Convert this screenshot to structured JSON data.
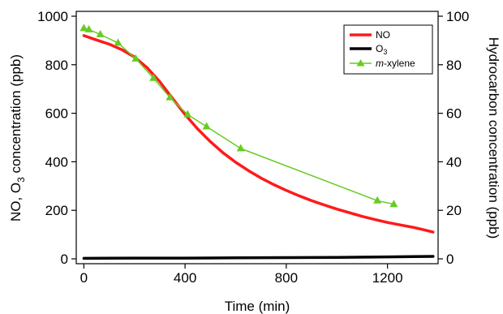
{
  "chart_data": {
    "type": "line",
    "x_range": [
      -30,
      1400
    ],
    "y_left_range": [
      -20,
      1020
    ],
    "y_right_range": [
      -2,
      102
    ],
    "x_ticks": [
      0,
      400,
      800,
      1200
    ],
    "y_left_ticks": [
      0,
      200,
      400,
      600,
      800,
      1000
    ],
    "y_right_ticks": [
      0,
      20,
      40,
      60,
      80,
      100
    ],
    "xlabel": "Time (min)",
    "ylabel_left_parts": {
      "a": "NO, O",
      "sub": "3",
      "b": " concentration  (ppb)"
    },
    "ylabel_right": "Hydrocarbon  concentration (ppb)",
    "legend_position": "top-right",
    "series": [
      {
        "name": "NO",
        "axis": "left",
        "color": "#ff1a1a",
        "marker": "none",
        "x": [
          0,
          50,
          100,
          150,
          200,
          250,
          300,
          350,
          400,
          450,
          500,
          550,
          600,
          650,
          700,
          750,
          800,
          850,
          900,
          950,
          1000,
          1050,
          1100,
          1150,
          1200,
          1250,
          1300,
          1350,
          1380
        ],
        "y": [
          920,
          902,
          885,
          862,
          832,
          788,
          730,
          662,
          595,
          535,
          483,
          437,
          398,
          364,
          333,
          306,
          282,
          260,
          240,
          222,
          205,
          190,
          175,
          162,
          150,
          140,
          130,
          118,
          110
        ]
      },
      {
        "name_parts": {
          "a": "O",
          "sub": "3"
        },
        "axis": "left",
        "color": "#000000",
        "marker": "none",
        "x": [
          0,
          200,
          400,
          600,
          800,
          1000,
          1200,
          1380
        ],
        "y": [
          2,
          3,
          3,
          4,
          5,
          6,
          8,
          10
        ]
      },
      {
        "name_parts": {
          "italic": "m",
          "rest": "-xylene"
        },
        "axis": "right",
        "color": "#66cc22",
        "marker": "triangle",
        "x": [
          0,
          20,
          65,
          135,
          205,
          275,
          340,
          410,
          485,
          620,
          1160,
          1225
        ],
        "y": [
          95,
          94.5,
          92.5,
          89,
          82.5,
          74.5,
          66.5,
          59.5,
          54.5,
          45.5,
          24,
          22.5
        ]
      }
    ]
  }
}
